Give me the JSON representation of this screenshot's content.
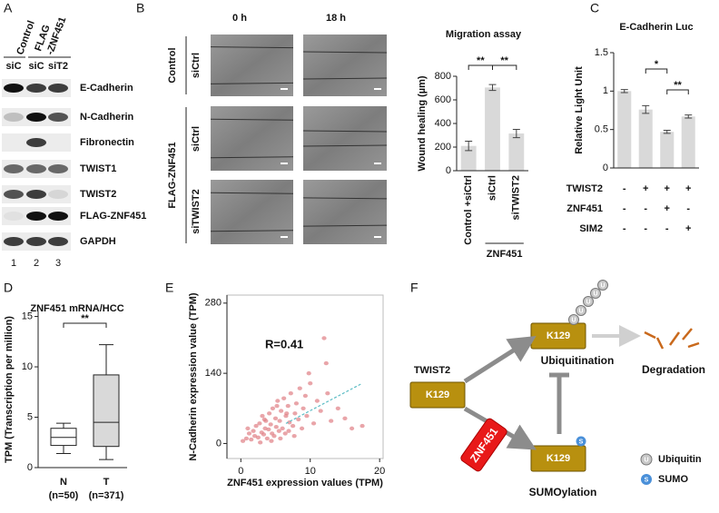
{
  "panel_labels": [
    "A",
    "B",
    "C",
    "D",
    "E",
    "F"
  ],
  "panel_a": {
    "columns": [
      [
        "Control"
      ],
      [
        "FLAG",
        "-ZNF451"
      ]
    ],
    "lanes": [
      "siC",
      "siC",
      "siT2"
    ],
    "rows": [
      "E-Cadherin",
      "N-Cadherin",
      "Fibronectin",
      "TWIST1",
      "TWIST2",
      "FLAG-ZNF451",
      "GAPDH"
    ],
    "lane_numbers": [
      "1",
      "2",
      "3"
    ]
  },
  "panel_b": {
    "times": [
      "0 h",
      "18 h"
    ],
    "groups": [
      "Control",
      "FLAG-ZNF451"
    ],
    "rows": [
      "siCtrl",
      "siCtrl",
      "siTWIST2"
    ]
  },
  "chart_data": [
    {
      "type": "bar",
      "title": "Migration assay",
      "y_label": "Wound healing (µm)",
      "categories": [
        "Control +siCtrl",
        "siCtrl",
        "siTWIST2"
      ],
      "values": [
        210,
        705,
        315
      ],
      "errors": [
        40,
        25,
        35
      ],
      "color": "#d9d9d9",
      "group_label": "ZNF451",
      "significance": [
        "**",
        "**"
      ],
      "ylim": [
        0,
        800
      ],
      "yticks": [
        0,
        200,
        400,
        600,
        800
      ]
    },
    {
      "type": "bar",
      "title": "E-Cadherin Luc",
      "y_label": "Relative Light Unit",
      "values": [
        1.0,
        0.76,
        0.47,
        0.67
      ],
      "errors": [
        0.02,
        0.05,
        0.02,
        0.02
      ],
      "color": "#d9d9d9",
      "conditions": [
        {
          "name": "TWIST2",
          "signs": [
            "-",
            "+",
            "+",
            "+"
          ]
        },
        {
          "name": "ZNF451",
          "signs": [
            "-",
            "-",
            "+",
            "-"
          ]
        },
        {
          "name": "SIM2",
          "signs": [
            "-",
            "-",
            "-",
            "+"
          ]
        }
      ],
      "significance": [
        "*",
        "**"
      ],
      "ylim": [
        0,
        1.5
      ],
      "yticks": [
        0,
        0.5,
        1,
        1.5
      ]
    },
    {
      "type": "box",
      "title": "ZNF451 mRNA/HCC",
      "y_label": "TPM (Transcription per million)",
      "categories": [
        "N",
        "T"
      ],
      "sample_sizes": [
        "(n=50)",
        "(n=371)"
      ],
      "colors": [
        "#ffffff",
        "#d9d9d9"
      ],
      "boxes": [
        {
          "min": 1.4,
          "q1": 2.2,
          "median": 3.0,
          "q3": 3.9,
          "max": 4.4
        },
        {
          "min": 0.8,
          "q1": 2.1,
          "median": 4.5,
          "q3": 9.2,
          "max": 12.2
        }
      ],
      "significance": [
        "**"
      ],
      "ylim": [
        0,
        15.5
      ],
      "yticks": [
        0,
        5,
        10,
        15
      ]
    },
    {
      "type": "scatter",
      "annotation": "R=0.41",
      "x_label": "ZNF451 expression values (TPM)",
      "y_label": "N-Cadherin expression value (TPM)",
      "color": "#e07f85",
      "trend_color": "#5bbcc4",
      "x": [
        0.3,
        0.8,
        1.2,
        1.5,
        1.8,
        2.0,
        2.2,
        2.5,
        2.7,
        3.0,
        3.1,
        3.3,
        3.5,
        3.6,
        3.8,
        4.0,
        4.1,
        4.3,
        4.5,
        4.6,
        4.8,
        5.0,
        5.1,
        5.3,
        5.5,
        5.6,
        5.8,
        6.0,
        6.2,
        6.4,
        6.5,
        6.8,
        7.0,
        7.2,
        7.5,
        7.8,
        8.0,
        8.3,
        8.5,
        8.8,
        9.0,
        9.3,
        9.5,
        10.0,
        10.5,
        11.0,
        11.5,
        12.0,
        12.5,
        13.0,
        14.0,
        15.0,
        16.0,
        17.5,
        2.8,
        4.4,
        5.7,
        6.6,
        3.4,
        7.7,
        9.8,
        12.3,
        1.0,
        5.2,
        6.9
      ],
      "y": [
        5,
        10,
        20,
        8,
        25,
        15,
        35,
        12,
        40,
        22,
        55,
        18,
        30,
        45,
        10,
        28,
        60,
        38,
        20,
        70,
        15,
        50,
        33,
        85,
        25,
        45,
        65,
        30,
        90,
        20,
        55,
        75,
        42,
        100,
        35,
        60,
        80,
        48,
        110,
        30,
        70,
        95,
        55,
        120,
        40,
        85,
        65,
        210,
        100,
        45,
        70,
        50,
        30,
        35,
        2,
        5,
        10,
        60,
        48,
        15,
        140,
        160,
        30,
        75,
        25
      ],
      "trendline": {
        "x": [
          6.5,
          17.5
        ],
        "y": [
          40,
          120
        ]
      },
      "xlim": [
        -2,
        20.5
      ],
      "xticks": [
        0,
        10,
        20
      ],
      "ylim": [
        -30,
        296
      ],
      "yticks": [
        0,
        140,
        280
      ]
    }
  ],
  "panel_f": {
    "substrate": "TWIST2",
    "site": "K129",
    "ligase": "ZNF451",
    "ubiquitination": "Ubiquitination",
    "sumoylation": "SUMOylation",
    "degradation": "Degradation",
    "ubiquitin_symbol": "U",
    "sumo_symbol": "S",
    "legend": [
      "Ubiquitin",
      "SUMO"
    ]
  }
}
